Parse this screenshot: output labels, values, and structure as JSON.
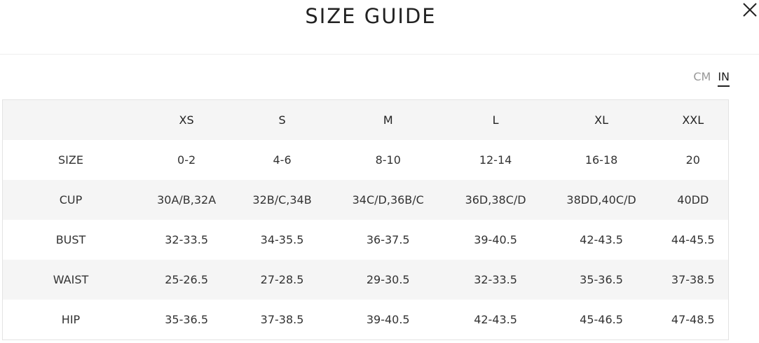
{
  "header": {
    "title": "SIZE GUIDE",
    "close_icon": "close-icon"
  },
  "units": {
    "options": [
      "CM",
      "IN"
    ],
    "selected": "IN"
  },
  "table": {
    "columns": [
      "",
      "XS",
      "S",
      "M",
      "L",
      "XL",
      "XXL"
    ],
    "rows": [
      {
        "label": "SIZE",
        "values": [
          "0-2",
          "4-6",
          "8-10",
          "12-14",
          "16-18",
          "20"
        ]
      },
      {
        "label": "CUP",
        "values": [
          "30A/B,32A",
          "32B/C,34B",
          "34C/D,36B/C",
          "36D,38C/D",
          "38DD,40C/D",
          "40DD"
        ]
      },
      {
        "label": "BUST",
        "values": [
          "32-33.5",
          "34-35.5",
          "36-37.5",
          "39-40.5",
          "42-43.5",
          "44-45.5"
        ]
      },
      {
        "label": "WAIST",
        "values": [
          "25-26.5",
          "27-28.5",
          "29-30.5",
          "32-33.5",
          "35-36.5",
          "37-38.5"
        ]
      },
      {
        "label": "HIP",
        "values": [
          "35-36.5",
          "37-38.5",
          "39-40.5",
          "42-43.5",
          "45-46.5",
          "47-48.5"
        ]
      }
    ]
  }
}
